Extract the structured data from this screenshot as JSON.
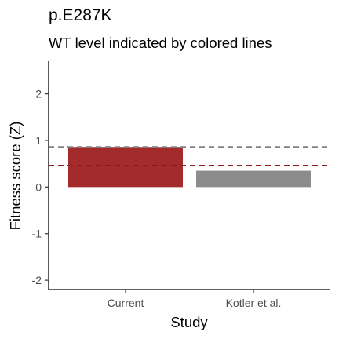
{
  "chart_data": {
    "type": "bar",
    "title": "p.E287K",
    "subtitle": "WT level indicated by colored lines",
    "xlabel": "Study",
    "ylabel": "Fitness score (Z)",
    "categories": [
      "Current",
      "Kotler et al."
    ],
    "values": [
      0.86,
      0.35
    ],
    "bar_colors": [
      "#a32b2b",
      "#8c8c8c"
    ],
    "reference_lines": [
      {
        "value": 0.86,
        "color": "#808080",
        "style": "dashed"
      },
      {
        "value": 0.46,
        "color": "#8b1a1a",
        "style": "dashed"
      }
    ],
    "ylim": [
      -2.2,
      2.7
    ],
    "yticks": [
      -2,
      -1,
      0,
      1,
      2
    ],
    "yticklabels": [
      "-2",
      "-1",
      "0",
      "1",
      "2"
    ],
    "grid": false,
    "legend": "none"
  }
}
